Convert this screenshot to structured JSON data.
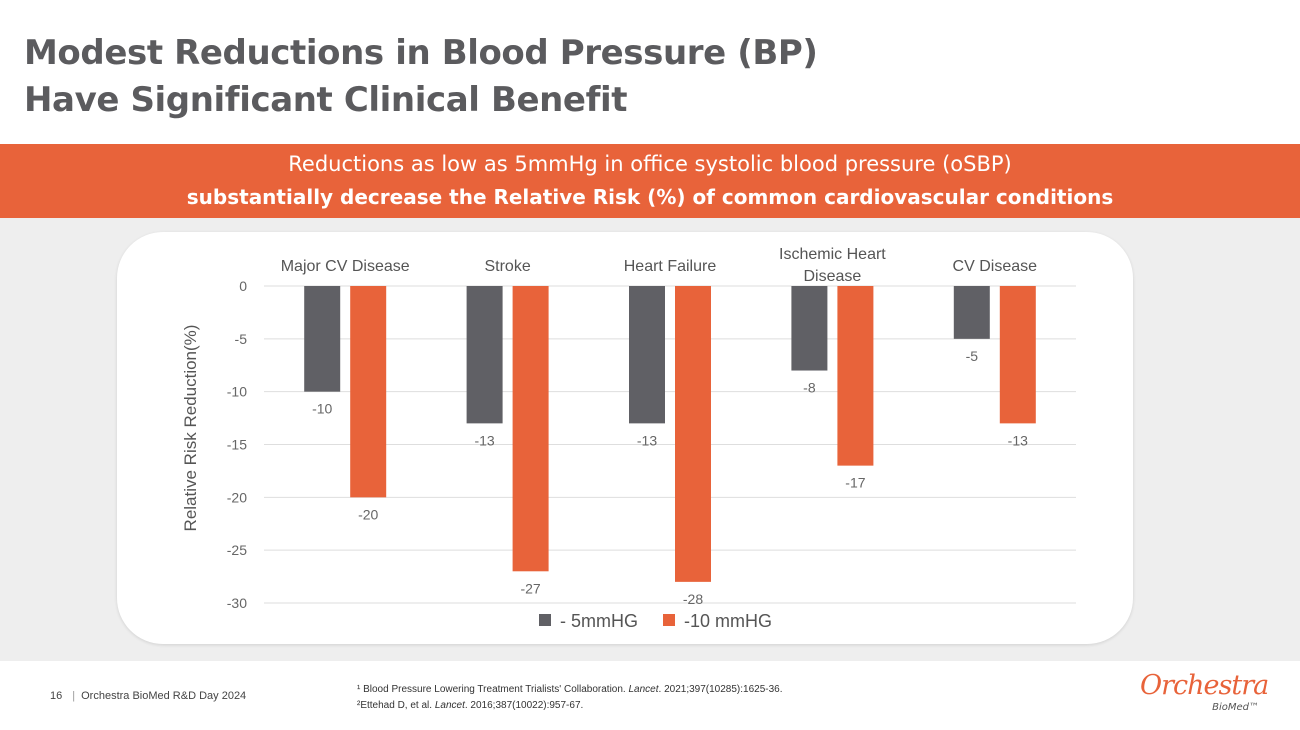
{
  "slide": {
    "title_line1": "Modest Reductions in Blood Pressure (BP)",
    "title_line2": "Have Significant Clinical Benefit",
    "banner_line1": "Reductions as low as 5mmHg in office systolic blood pressure (oSBP)",
    "banner_line2": "substantially decrease the Relative Risk (%) of common cardiovascular conditions",
    "page_number": "16",
    "footer_text": "Orchestra BioMed R&D Day 2024",
    "ref1_prefix": "¹ Blood Pressure Lowering Treatment Trialists' Collaboration. ",
    "ref1_journal": "Lancet",
    "ref1_suffix": ". 2021;397(10285):1625-36.",
    "ref2_prefix": "²Ettehad D, et al. ",
    "ref2_journal": "Lancet",
    "ref2_suffix": ". 2016;387(10022):957-67.",
    "logo_main": "Orchestra",
    "logo_sub": "BioMed™"
  },
  "colors": {
    "accent": "#e8633a",
    "series_gray": "#606065",
    "title": "#5b5b5e"
  },
  "chart_data": {
    "type": "bar",
    "title": "",
    "xlabel": "",
    "ylabel": "Relative Risk Reduction(%)",
    "ylim": [
      -30,
      0
    ],
    "yticks": [
      0,
      -5,
      -10,
      -15,
      -20,
      -25,
      -30
    ],
    "grid": true,
    "legend_position": "bottom-center",
    "categories": [
      [
        "Major CV Disease"
      ],
      [
        "Stroke"
      ],
      [
        "Heart Failure"
      ],
      [
        "Ischemic Heart",
        "Disease"
      ],
      [
        "CV Disease"
      ]
    ],
    "series": [
      {
        "name": "- 5mmHG",
        "color": "#606065",
        "values": [
          -10,
          -13,
          -13,
          -8,
          -5
        ]
      },
      {
        "name": "-10 mmHG",
        "color": "#e8633a",
        "values": [
          -20,
          -27,
          -28,
          -17,
          -13
        ]
      }
    ]
  }
}
